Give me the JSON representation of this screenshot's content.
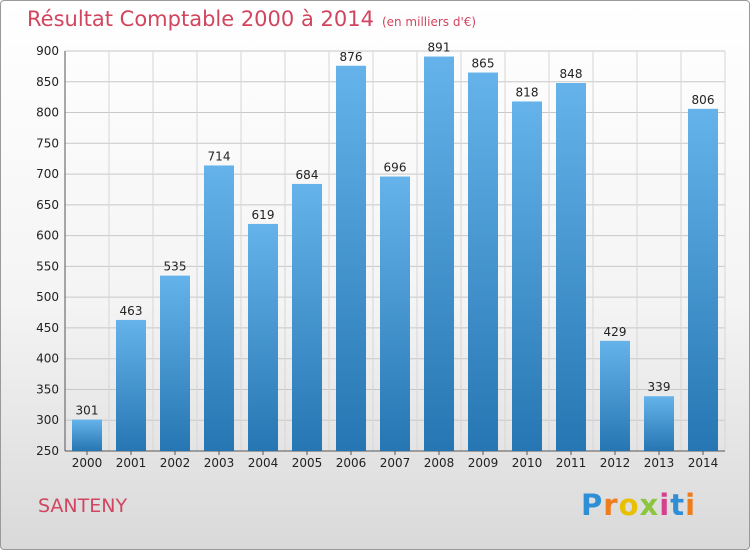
{
  "header": {
    "title": "Résultat Comptable 2000 à 2014",
    "subtitle": "(en milliers d'€)"
  },
  "footer": {
    "town": "SANTENY",
    "logo": "Proxiti"
  },
  "colors": {
    "title": "#d1455f",
    "bar_light": "#65b3ea",
    "bar_dark": "#2676b3"
  },
  "chart_data": {
    "type": "bar",
    "title": "Résultat Comptable 2000 à 2014",
    "subtitle": "(en milliers d'€)",
    "categories": [
      "2000",
      "2001",
      "2002",
      "2003",
      "2004",
      "2005",
      "2006",
      "2007",
      "2008",
      "2009",
      "2010",
      "2011",
      "2012",
      "2013",
      "2014"
    ],
    "values": [
      301,
      463,
      535,
      714,
      619,
      684,
      876,
      696,
      891,
      865,
      818,
      848,
      429,
      339,
      806
    ],
    "ylim": [
      250,
      900
    ],
    "yticks": [
      250,
      300,
      350,
      400,
      450,
      500,
      550,
      600,
      650,
      700,
      750,
      800,
      850,
      900
    ],
    "grid": true,
    "legend": "none"
  }
}
